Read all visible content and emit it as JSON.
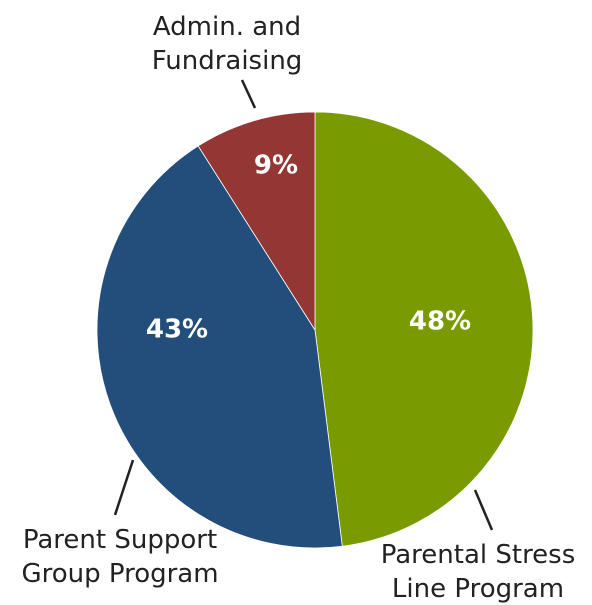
{
  "chart_data": {
    "type": "pie",
    "categories": [
      "Parental Stress Line Program",
      "Parent Support Group Program",
      "Admin. and Fundraising"
    ],
    "values": [
      48,
      43,
      9
    ],
    "value_labels": [
      "48%",
      "43%",
      "9%"
    ],
    "colors": [
      "#7a9a01",
      "#234e7c",
      "#933634"
    ]
  }
}
